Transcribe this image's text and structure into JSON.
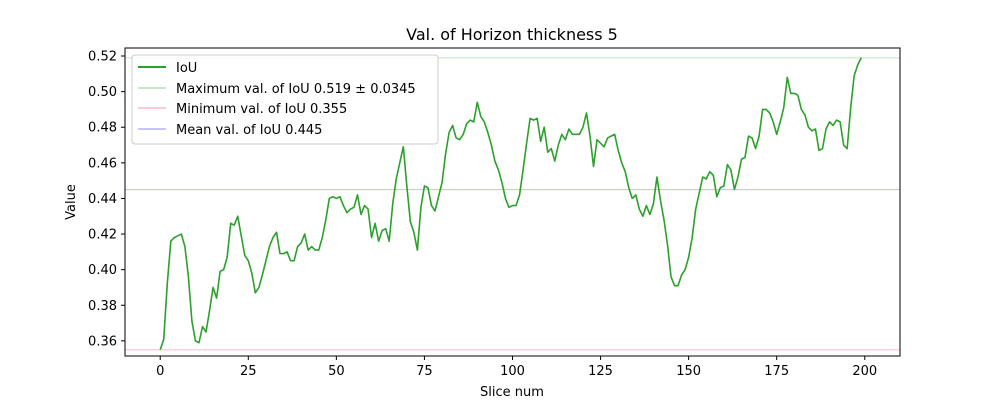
{
  "chart_data": {
    "type": "line",
    "title": "Val. of Horizon thickness 5",
    "xlabel": "Slice num",
    "ylabel": "Value",
    "xlim": [
      -10,
      210
    ],
    "ylim": [
      0.3515,
      0.5245
    ],
    "x_ticks": [
      0,
      25,
      50,
      75,
      100,
      125,
      150,
      175,
      200
    ],
    "y_ticks": [
      0.36,
      0.38,
      0.4,
      0.42,
      0.44,
      0.46,
      0.48,
      0.5,
      0.52
    ],
    "x_tick_labels": [
      "0",
      "25",
      "50",
      "75",
      "100",
      "125",
      "150",
      "175",
      "200"
    ],
    "y_tick_labels": [
      "0.36",
      "0.38",
      "0.40",
      "0.42",
      "0.44",
      "0.46",
      "0.48",
      "0.50",
      "0.52"
    ],
    "grid": false,
    "legend_position": "top-left",
    "series": [
      {
        "name": "IoU",
        "color": "#2ca02c",
        "x": [
          0,
          1,
          2,
          3,
          4,
          5,
          6,
          7,
          8,
          9,
          10,
          11,
          12,
          13,
          14,
          15,
          16,
          17,
          18,
          19,
          20,
          21,
          22,
          23,
          24,
          25,
          26,
          27,
          28,
          29,
          30,
          31,
          32,
          33,
          34,
          35,
          36,
          37,
          38,
          39,
          40,
          41,
          42,
          43,
          44,
          45,
          46,
          47,
          48,
          49,
          50,
          51,
          52,
          53,
          54,
          55,
          56,
          57,
          58,
          59,
          60,
          61,
          62,
          63,
          64,
          65,
          66,
          67,
          68,
          69,
          70,
          71,
          72,
          73,
          74,
          75,
          76,
          77,
          78,
          79,
          80,
          81,
          82,
          83,
          84,
          85,
          86,
          87,
          88,
          89,
          90,
          91,
          92,
          93,
          94,
          95,
          96,
          97,
          98,
          99,
          100,
          101,
          102,
          103,
          104,
          105,
          106,
          107,
          108,
          109,
          110,
          111,
          112,
          113,
          114,
          115,
          116,
          117,
          118,
          119,
          120,
          121,
          122,
          123,
          124,
          125,
          126,
          127,
          128,
          129,
          130,
          131,
          132,
          133,
          134,
          135,
          136,
          137,
          138,
          139,
          140,
          141,
          142,
          143,
          144,
          145,
          146,
          147,
          148,
          149,
          150,
          151,
          152,
          153,
          154,
          155,
          156,
          157,
          158,
          159,
          160,
          161,
          162,
          163,
          164,
          165,
          166,
          167,
          168,
          169,
          170,
          171,
          172,
          173,
          174,
          175,
          176,
          177,
          178,
          179,
          180,
          181,
          182,
          183,
          184,
          185,
          186,
          187,
          188,
          189,
          190,
          191,
          192,
          193,
          194,
          195,
          196,
          197,
          198,
          199
        ],
        "values": [
          0.355,
          0.361,
          0.392,
          0.416,
          0.418,
          0.419,
          0.42,
          0.413,
          0.396,
          0.371,
          0.36,
          0.359,
          0.368,
          0.365,
          0.377,
          0.39,
          0.384,
          0.399,
          0.4,
          0.407,
          0.426,
          0.425,
          0.43,
          0.419,
          0.408,
          0.405,
          0.398,
          0.387,
          0.39,
          0.397,
          0.405,
          0.413,
          0.418,
          0.421,
          0.409,
          0.409,
          0.41,
          0.405,
          0.405,
          0.413,
          0.415,
          0.42,
          0.411,
          0.413,
          0.411,
          0.411,
          0.418,
          0.428,
          0.44,
          0.441,
          0.44,
          0.441,
          0.436,
          0.432,
          0.434,
          0.435,
          0.442,
          0.431,
          0.436,
          0.434,
          0.418,
          0.426,
          0.416,
          0.422,
          0.423,
          0.416,
          0.437,
          0.451,
          0.46,
          0.469,
          0.447,
          0.427,
          0.421,
          0.411,
          0.435,
          0.447,
          0.446,
          0.436,
          0.433,
          0.441,
          0.449,
          0.465,
          0.477,
          0.481,
          0.474,
          0.473,
          0.476,
          0.482,
          0.484,
          0.483,
          0.494,
          0.486,
          0.483,
          0.477,
          0.47,
          0.461,
          0.456,
          0.449,
          0.44,
          0.435,
          0.436,
          0.436,
          0.442,
          0.456,
          0.471,
          0.485,
          0.484,
          0.485,
          0.472,
          0.48,
          0.466,
          0.468,
          0.461,
          0.47,
          0.476,
          0.473,
          0.479,
          0.476,
          0.476,
          0.476,
          0.48,
          0.488,
          0.475,
          0.458,
          0.473,
          0.471,
          0.469,
          0.474,
          0.475,
          0.476,
          0.467,
          0.46,
          0.455,
          0.446,
          0.44,
          0.442,
          0.434,
          0.43,
          0.436,
          0.431,
          0.437,
          0.452,
          0.439,
          0.428,
          0.414,
          0.396,
          0.391,
          0.391,
          0.397,
          0.4,
          0.407,
          0.418,
          0.434,
          0.443,
          0.452,
          0.451,
          0.455,
          0.453,
          0.441,
          0.446,
          0.447,
          0.459,
          0.456,
          0.445,
          0.452,
          0.462,
          0.463,
          0.475,
          0.474,
          0.468,
          0.475,
          0.49,
          0.49,
          0.488,
          0.483,
          0.476,
          0.483,
          0.491,
          0.508,
          0.499,
          0.499,
          0.498,
          0.49,
          0.487,
          0.48,
          0.478,
          0.479,
          0.467,
          0.468,
          0.479,
          0.483,
          0.481,
          0.484,
          0.483,
          0.47,
          0.468,
          0.491,
          0.509,
          0.515,
          0.519
        ]
      }
    ],
    "reference_lines": [
      {
        "label": "Maximum val. of IoU 0.519 ± 0.0345",
        "y": 0.519,
        "color": "#c8e6c8"
      },
      {
        "label": "Minimum val. of IoU 0.355",
        "y": 0.355,
        "color": "#ffc9d1"
      },
      {
        "label": "Mean val. of IoU 0.445",
        "y": 0.445,
        "color": "#c6c6ff"
      }
    ],
    "legend": [
      {
        "label": "IoU",
        "color": "#2ca02c"
      },
      {
        "label": "Maximum val. of IoU 0.519 ± 0.0345",
        "color": "#c8e6c8"
      },
      {
        "label": "Minimum val. of IoU 0.355",
        "color": "#ffc9d1"
      },
      {
        "label": "Mean val. of IoU 0.445",
        "color": "#c6c6ff"
      }
    ]
  }
}
